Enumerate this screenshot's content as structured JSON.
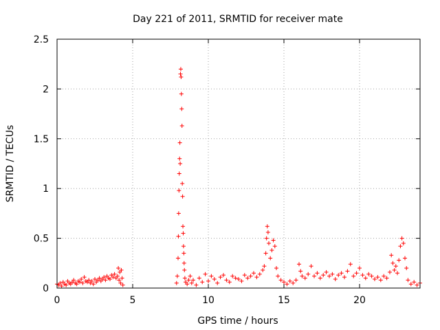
{
  "chart_data": {
    "type": "scatter",
    "title": "Day 221 of 2011, SRMTID for receiver mate",
    "xlabel": "GPS time / hours",
    "ylabel": "SRMTID / TECUs",
    "xlim": [
      0,
      24
    ],
    "ylim": [
      0,
      2.5
    ],
    "x_ticks": [
      0,
      5,
      10,
      15,
      20
    ],
    "x_tick_labels": [
      "0",
      "5",
      "10",
      "15",
      "20"
    ],
    "y_ticks": [
      0,
      0.5,
      1,
      1.5,
      2,
      2.5
    ],
    "y_tick_labels": [
      "0",
      "0.5",
      "1",
      "1.5",
      "2",
      "2.5"
    ],
    "grid": true,
    "marker": "plus",
    "color": "#ff0000",
    "series": [
      {
        "name": "SRMTID",
        "points": [
          [
            0.0,
            0.04
          ],
          [
            0.1,
            0.03
          ],
          [
            0.2,
            0.05
          ],
          [
            0.3,
            0.02
          ],
          [
            0.4,
            0.06
          ],
          [
            0.5,
            0.04
          ],
          [
            0.6,
            0.03
          ],
          [
            0.7,
            0.07
          ],
          [
            0.8,
            0.05
          ],
          [
            0.9,
            0.04
          ],
          [
            1.0,
            0.06
          ],
          [
            1.1,
            0.08
          ],
          [
            1.2,
            0.05
          ],
          [
            1.3,
            0.04
          ],
          [
            1.4,
            0.07
          ],
          [
            1.5,
            0.06
          ],
          [
            1.6,
            0.09
          ],
          [
            1.7,
            0.05
          ],
          [
            1.8,
            0.11
          ],
          [
            1.9,
            0.07
          ],
          [
            2.0,
            0.06
          ],
          [
            2.1,
            0.08
          ],
          [
            2.2,
            0.05
          ],
          [
            2.3,
            0.07
          ],
          [
            2.4,
            0.04
          ],
          [
            2.5,
            0.09
          ],
          [
            2.6,
            0.06
          ],
          [
            2.7,
            0.08
          ],
          [
            2.8,
            0.1
          ],
          [
            2.9,
            0.07
          ],
          [
            3.0,
            0.09
          ],
          [
            3.1,
            0.11
          ],
          [
            3.2,
            0.08
          ],
          [
            3.3,
            0.12
          ],
          [
            3.4,
            0.1
          ],
          [
            3.5,
            0.09
          ],
          [
            3.6,
            0.13
          ],
          [
            3.7,
            0.11
          ],
          [
            3.8,
            0.14
          ],
          [
            3.9,
            0.1
          ],
          [
            4.0,
            0.12
          ],
          [
            4.05,
            0.2
          ],
          [
            4.1,
            0.08
          ],
          [
            4.15,
            0.16
          ],
          [
            4.2,
            0.05
          ],
          [
            4.25,
            0.18
          ],
          [
            4.3,
            0.1
          ],
          [
            4.35,
            0.03
          ],
          [
            7.9,
            0.05
          ],
          [
            7.95,
            0.12
          ],
          [
            8.0,
            0.3
          ],
          [
            8.02,
            0.52
          ],
          [
            8.04,
            0.75
          ],
          [
            8.06,
            0.98
          ],
          [
            8.08,
            1.15
          ],
          [
            8.1,
            1.3
          ],
          [
            8.12,
            1.46
          ],
          [
            8.14,
            1.25
          ],
          [
            8.16,
            2.15
          ],
          [
            8.18,
            2.2
          ],
          [
            8.2,
            2.12
          ],
          [
            8.22,
            1.95
          ],
          [
            8.24,
            1.8
          ],
          [
            8.26,
            1.63
          ],
          [
            8.28,
            1.05
          ],
          [
            8.3,
            0.92
          ],
          [
            8.32,
            0.62
          ],
          [
            8.34,
            0.55
          ],
          [
            8.36,
            0.42
          ],
          [
            8.38,
            0.35
          ],
          [
            8.4,
            0.25
          ],
          [
            8.42,
            0.18
          ],
          [
            8.45,
            0.1
          ],
          [
            8.5,
            0.06
          ],
          [
            8.6,
            0.04
          ],
          [
            8.7,
            0.08
          ],
          [
            8.8,
            0.12
          ],
          [
            8.9,
            0.05
          ],
          [
            9.0,
            0.08
          ],
          [
            9.2,
            0.03
          ],
          [
            9.4,
            0.1
          ],
          [
            9.6,
            0.06
          ],
          [
            9.8,
            0.14
          ],
          [
            10.0,
            0.07
          ],
          [
            10.2,
            0.12
          ],
          [
            10.4,
            0.09
          ],
          [
            10.6,
            0.05
          ],
          [
            10.8,
            0.11
          ],
          [
            11.0,
            0.13
          ],
          [
            11.2,
            0.08
          ],
          [
            11.4,
            0.06
          ],
          [
            11.6,
            0.12
          ],
          [
            11.8,
            0.1
          ],
          [
            12.0,
            0.09
          ],
          [
            12.2,
            0.07
          ],
          [
            12.4,
            0.13
          ],
          [
            12.6,
            0.1
          ],
          [
            12.8,
            0.12
          ],
          [
            13.0,
            0.15
          ],
          [
            13.2,
            0.11
          ],
          [
            13.4,
            0.14
          ],
          [
            13.6,
            0.18
          ],
          [
            13.7,
            0.22
          ],
          [
            13.8,
            0.35
          ],
          [
            13.85,
            0.5
          ],
          [
            13.9,
            0.62
          ],
          [
            13.95,
            0.56
          ],
          [
            14.0,
            0.45
          ],
          [
            14.1,
            0.3
          ],
          [
            14.2,
            0.38
          ],
          [
            14.3,
            0.48
          ],
          [
            14.4,
            0.42
          ],
          [
            14.5,
            0.2
          ],
          [
            14.6,
            0.12
          ],
          [
            14.8,
            0.08
          ],
          [
            15.0,
            0.06
          ],
          [
            15.2,
            0.04
          ],
          [
            15.4,
            0.07
          ],
          [
            15.6,
            0.05
          ],
          [
            15.8,
            0.08
          ],
          [
            16.0,
            0.24
          ],
          [
            16.1,
            0.17
          ],
          [
            16.2,
            0.12
          ],
          [
            16.4,
            0.1
          ],
          [
            16.6,
            0.14
          ],
          [
            16.8,
            0.22
          ],
          [
            17.0,
            0.12
          ],
          [
            17.2,
            0.15
          ],
          [
            17.4,
            0.1
          ],
          [
            17.6,
            0.13
          ],
          [
            17.8,
            0.16
          ],
          [
            18.0,
            0.12
          ],
          [
            18.2,
            0.14
          ],
          [
            18.4,
            0.09
          ],
          [
            18.6,
            0.13
          ],
          [
            18.8,
            0.15
          ],
          [
            19.0,
            0.11
          ],
          [
            19.2,
            0.17
          ],
          [
            19.4,
            0.24
          ],
          [
            19.6,
            0.12
          ],
          [
            19.8,
            0.15
          ],
          [
            20.0,
            0.2
          ],
          [
            20.2,
            0.13
          ],
          [
            20.4,
            0.1
          ],
          [
            20.6,
            0.14
          ],
          [
            20.8,
            0.12
          ],
          [
            21.0,
            0.09
          ],
          [
            21.2,
            0.11
          ],
          [
            21.4,
            0.08
          ],
          [
            21.6,
            0.12
          ],
          [
            21.8,
            0.1
          ],
          [
            22.0,
            0.16
          ],
          [
            22.1,
            0.33
          ],
          [
            22.2,
            0.25
          ],
          [
            22.3,
            0.18
          ],
          [
            22.4,
            0.22
          ],
          [
            22.5,
            0.15
          ],
          [
            22.6,
            0.28
          ],
          [
            22.7,
            0.42
          ],
          [
            22.8,
            0.5
          ],
          [
            22.9,
            0.45
          ],
          [
            23.0,
            0.3
          ],
          [
            23.1,
            0.2
          ],
          [
            23.2,
            0.08
          ],
          [
            23.4,
            0.04
          ],
          [
            23.6,
            0.06
          ],
          [
            23.8,
            0.03
          ],
          [
            24.0,
            0.05
          ]
        ]
      }
    ]
  }
}
